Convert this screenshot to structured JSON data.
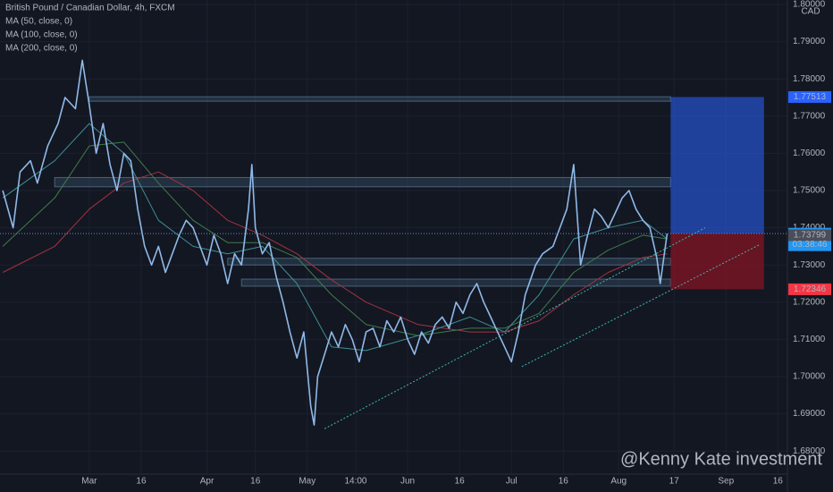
{
  "chart_data": {
    "type": "line",
    "title": "British Pound / Canadian Dollar, 4h, FXCM",
    "currency": "CAD",
    "xlim": [
      -25.8,
      201.5
    ],
    "xticks": [
      {
        "value": 0,
        "label": "Mar"
      },
      {
        "value": 15,
        "label": "16"
      },
      {
        "value": 34,
        "label": "Apr"
      },
      {
        "value": 48,
        "label": "16"
      },
      {
        "value": 63,
        "label": "May"
      },
      {
        "value": 77,
        "label": "14:00"
      },
      {
        "value": 92,
        "label": "Jun"
      },
      {
        "value": 107,
        "label": "16"
      },
      {
        "value": 122,
        "label": "Jul"
      },
      {
        "value": 137,
        "label": "16"
      },
      {
        "value": 153,
        "label": "Aug"
      },
      {
        "value": 169,
        "label": "17"
      },
      {
        "value": 184,
        "label": "Sep"
      },
      {
        "value": 199,
        "label": "16"
      }
    ],
    "ylim": [
      1.6738,
      1.8012
    ],
    "yticks": [
      {
        "value": 1.8,
        "label": "1.80000"
      },
      {
        "value": 1.79,
        "label": "1.79000"
      },
      {
        "value": 1.78,
        "label": "1.78000"
      },
      {
        "value": 1.77,
        "label": "1.77000"
      },
      {
        "value": 1.76,
        "label": "1.76000"
      },
      {
        "value": 1.75,
        "label": "1.75000"
      },
      {
        "value": 1.74,
        "label": "1.74000"
      },
      {
        "value": 1.73,
        "label": "1.73000"
      },
      {
        "value": 1.72,
        "label": "1.72000"
      },
      {
        "value": 1.71,
        "label": "1.71000"
      },
      {
        "value": 1.7,
        "label": "1.70000"
      },
      {
        "value": 1.69,
        "label": "1.69000"
      },
      {
        "value": 1.68,
        "label": "1.68000"
      }
    ],
    "grid": true,
    "series": [
      {
        "color": "#8fb9e8",
        "x": [
          -25,
          -22,
          -20,
          -17,
          -15,
          -12,
          -9,
          -7,
          -4,
          -2,
          0,
          2,
          4,
          6,
          8,
          10,
          12,
          14,
          16,
          18,
          20,
          22,
          24,
          26,
          28,
          30,
          32,
          34,
          36,
          38,
          40,
          42,
          44,
          46,
          47,
          48,
          50,
          52,
          54,
          56,
          58,
          60,
          62,
          64,
          65,
          66,
          68,
          70,
          72,
          74,
          76,
          78,
          80,
          82,
          84,
          86,
          88,
          90,
          92,
          94,
          96,
          98,
          100,
          102,
          104,
          106,
          108,
          110,
          112,
          114,
          116,
          118,
          120,
          122,
          124,
          126,
          129,
          131,
          134,
          138,
          140,
          142,
          144,
          146,
          148,
          150,
          152,
          154,
          156,
          158,
          160,
          162,
          164,
          165,
          167
        ],
        "values": [
          1.75,
          1.74,
          1.755,
          1.758,
          1.752,
          1.762,
          1.768,
          1.775,
          1.772,
          1.785,
          1.773,
          1.76,
          1.768,
          1.757,
          1.75,
          1.76,
          1.758,
          1.745,
          1.735,
          1.73,
          1.735,
          1.728,
          1.733,
          1.738,
          1.742,
          1.74,
          1.735,
          1.73,
          1.738,
          1.733,
          1.725,
          1.733,
          1.73,
          1.745,
          1.757,
          1.74,
          1.733,
          1.736,
          1.727,
          1.72,
          1.712,
          1.705,
          1.712,
          1.692,
          1.687,
          1.7,
          1.706,
          1.712,
          1.708,
          1.714,
          1.71,
          1.704,
          1.712,
          1.713,
          1.708,
          1.715,
          1.712,
          1.716,
          1.71,
          1.706,
          1.712,
          1.709,
          1.714,
          1.716,
          1.713,
          1.72,
          1.717,
          1.722,
          1.725,
          1.72,
          1.716,
          1.712,
          1.708,
          1.704,
          1.712,
          1.722,
          1.73,
          1.733,
          1.735,
          1.745,
          1.757,
          1.73,
          1.738,
          1.745,
          1.743,
          1.74,
          1.744,
          1.748,
          1.75,
          1.745,
          1.742,
          1.74,
          1.732,
          1.725,
          1.73842
        ]
      },
      {
        "name": "MA (50, close, 0)",
        "color": "#3d8f94",
        "x": [
          -25,
          -10,
          0,
          10,
          20,
          30,
          40,
          50,
          60,
          70,
          80,
          95,
          110,
          120,
          130,
          140,
          150,
          160,
          167
        ],
        "values": [
          1.748,
          1.758,
          1.768,
          1.76,
          1.742,
          1.735,
          1.733,
          1.735,
          1.725,
          1.708,
          1.707,
          1.711,
          1.716,
          1.712,
          1.722,
          1.737,
          1.74,
          1.742,
          1.737
        ]
      },
      {
        "name": "MA (100, close, 0)",
        "color": "#3f7d4c",
        "x": [
          -25,
          -10,
          0,
          10,
          20,
          30,
          40,
          50,
          60,
          70,
          80,
          95,
          110,
          120,
          130,
          140,
          150,
          160,
          167
        ],
        "values": [
          1.735,
          1.748,
          1.762,
          1.763,
          1.752,
          1.742,
          1.736,
          1.736,
          1.732,
          1.722,
          1.714,
          1.711,
          1.713,
          1.713,
          1.717,
          1.728,
          1.734,
          1.738,
          1.737
        ]
      },
      {
        "name": "MA (200, close, 0)",
        "color": "#a33340",
        "x": [
          -25,
          -10,
          0,
          10,
          20,
          30,
          40,
          50,
          60,
          70,
          80,
          95,
          110,
          120,
          130,
          140,
          150,
          160,
          167
        ],
        "values": [
          1.728,
          1.735,
          1.745,
          1.752,
          1.755,
          1.75,
          1.742,
          1.738,
          1.733,
          1.726,
          1.72,
          1.714,
          1.712,
          1.712,
          1.715,
          1.722,
          1.728,
          1.732,
          1.733
        ]
      }
    ],
    "zones": [
      {
        "x": [
          0,
          168
        ],
        "low": 1.774,
        "high": 1.7752
      },
      {
        "x": [
          -10,
          168
        ],
        "low": 1.751,
        "high": 1.7535
      },
      {
        "x": [
          40,
          168
        ],
        "low": 1.73,
        "high": 1.7318
      },
      {
        "x": [
          44,
          168
        ],
        "low": 1.7243,
        "high": 1.7262
      }
    ],
    "trendlines": [
      {
        "x": [
          68,
          178
        ],
        "values": [
          1.686,
          1.74
        ]
      },
      {
        "x": [
          125,
          194
        ],
        "values": [
          1.7027,
          1.7356
        ]
      }
    ],
    "position": {
      "x": [
        168,
        195
      ],
      "entry": 1.73842,
      "target": 1.77513,
      "stop": 1.72346
    },
    "price_labels": [
      {
        "value": 1.77513,
        "label": "1.77513",
        "color": "#2962ff"
      },
      {
        "value": 1.73842,
        "label": "1.73842",
        "color": "#2196f3"
      },
      {
        "value": 1.73799,
        "label": "1.73799",
        "color": "#4a4e5a"
      },
      {
        "value": 1.72346,
        "label": "1.72346",
        "color": "#f23645"
      }
    ],
    "countdown": "03:38:46",
    "watermark": "@Kenny Kate investment"
  }
}
